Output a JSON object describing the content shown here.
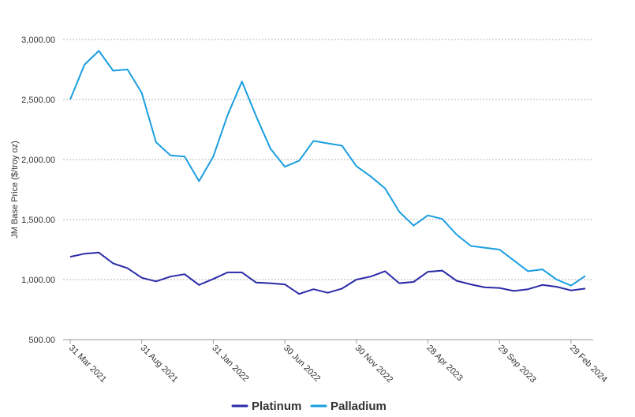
{
  "chart_data": {
    "type": "line",
    "ylabel": "JM Base Price ($/troy oz)",
    "ylim": [
      500,
      3000
    ],
    "yticks": [
      "500.00",
      "1,000.00",
      "1,500.00",
      "2,000.00",
      "2,500.00",
      "3,000.00"
    ],
    "ytick_values": [
      500,
      1000,
      1500,
      2000,
      2500,
      3000
    ],
    "xtick_labels": [
      "31 Mar 2021",
      "31 Aug 2021",
      "31 Jan 2022",
      "30 Jun 2022",
      "30 Nov 2022",
      "28 Apr 2023",
      "29 Sep 2023",
      "29 Feb 2024"
    ],
    "xtick_index": [
      0,
      5,
      10,
      15,
      20,
      25,
      30,
      35
    ],
    "x": [
      "31 Mar 2021",
      "30 Apr 2021",
      "31 May 2021",
      "30 Jun 2021",
      "30 Jul 2021",
      "31 Aug 2021",
      "30 Sep 2021",
      "29 Oct 2021",
      "30 Nov 2021",
      "31 Dec 2021",
      "31 Jan 2022",
      "28 Feb 2022",
      "31 Mar 2022",
      "29 Apr 2022",
      "31 May 2022",
      "30 Jun 2022",
      "29 Jul 2022",
      "31 Aug 2022",
      "30 Sep 2022",
      "31 Oct 2022",
      "30 Nov 2022",
      "30 Dec 2022",
      "31 Jan 2023",
      "28 Feb 2023",
      "31 Mar 2023",
      "28 Apr 2023",
      "31 May 2023",
      "30 Jun 2023",
      "31 Jul 2023",
      "31 Aug 2023",
      "29 Sep 2023",
      "31 Oct 2023",
      "30 Nov 2023",
      "29 Dec 2023",
      "31 Jan 2024",
      "29 Feb 2024",
      "28 Mar 2024"
    ],
    "grid": true,
    "legend_position": "bottom-center",
    "series": [
      {
        "name": "Platinum",
        "color": "#2a2aa8",
        "values": [
          1190,
          1215,
          1225,
          1135,
          1095,
          1015,
          985,
          1025,
          1045,
          955,
          1005,
          1060,
          1060,
          975,
          970,
          960,
          880,
          920,
          890,
          925,
          1000,
          1025,
          1070,
          970,
          980,
          1065,
          1075,
          990,
          960,
          935,
          930,
          905,
          920,
          955,
          940,
          910,
          925
        ]
      },
      {
        "name": "Palladium",
        "color": "#1a9ee0",
        "values": [
          2500,
          2790,
          2905,
          2740,
          2750,
          2555,
          2145,
          2035,
          2025,
          1820,
          2025,
          2370,
          2650,
          2360,
          2090,
          1940,
          1990,
          2155,
          2135,
          2115,
          1945,
          1860,
          1760,
          1565,
          1450,
          1535,
          1505,
          1375,
          1280,
          1265,
          1250,
          1160,
          1070,
          1085,
          1000,
          950,
          1030
        ]
      }
    ]
  }
}
